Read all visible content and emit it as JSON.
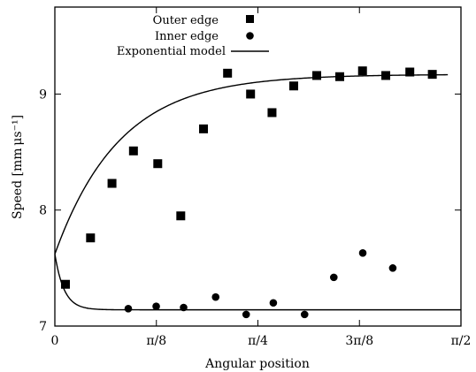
{
  "chart_data": {
    "type": "scatter",
    "title": "",
    "xlabel": "Angular position",
    "ylabel": "Speed [mm μs⁻¹]",
    "xlim": [
      0,
      1.5708
    ],
    "ylim": [
      7.0,
      9.75
    ],
    "legend_placement": "top-left",
    "grid": false,
    "x_ticks": [
      {
        "value": 0,
        "label": "0"
      },
      {
        "value": 0.3927,
        "label": "π/8"
      },
      {
        "value": 0.7854,
        "label": "π/4"
      },
      {
        "value": 1.1781,
        "label": "3π/8"
      },
      {
        "value": 1.5708,
        "label": "π/2"
      }
    ],
    "y_ticks": [
      {
        "value": 7,
        "label": "7"
      },
      {
        "value": 8,
        "label": "8"
      },
      {
        "value": 9,
        "label": "9"
      }
    ],
    "series": [
      {
        "name": "Outer edge",
        "marker": "square",
        "points": [
          [
            0.041,
            7.36
          ],
          [
            0.138,
            7.76
          ],
          [
            0.221,
            8.23
          ],
          [
            0.304,
            8.51
          ],
          [
            0.398,
            8.4
          ],
          [
            0.487,
            7.95
          ],
          [
            0.575,
            8.7
          ],
          [
            0.668,
            9.18
          ],
          [
            0.757,
            9.0
          ],
          [
            0.84,
            8.84
          ],
          [
            0.924,
            9.07
          ],
          [
            1.013,
            9.16
          ],
          [
            1.102,
            9.15
          ],
          [
            1.19,
            9.2
          ],
          [
            1.28,
            9.16
          ],
          [
            1.373,
            9.19
          ],
          [
            1.46,
            9.17
          ]
        ]
      },
      {
        "name": "Inner edge",
        "marker": "circle",
        "points": [
          [
            0.284,
            7.15
          ],
          [
            0.392,
            7.17
          ],
          [
            0.498,
            7.16
          ],
          [
            0.622,
            7.25
          ],
          [
            0.74,
            7.1
          ],
          [
            0.845,
            7.2
          ],
          [
            0.966,
            7.1
          ],
          [
            1.079,
            7.42
          ],
          [
            1.191,
            7.63
          ],
          [
            1.307,
            7.5
          ]
        ]
      },
      {
        "name": "Exponential model",
        "marker": "line",
        "curves": [
          {
            "y0": 7.62,
            "y_inf": 9.17,
            "rate": 4.0,
            "x_range": [
              0,
              1.52
            ]
          },
          {
            "y0": 7.62,
            "y_inf": 7.14,
            "rate": 28.0,
            "x_range": [
              0,
              1.5708
            ]
          }
        ]
      }
    ]
  }
}
